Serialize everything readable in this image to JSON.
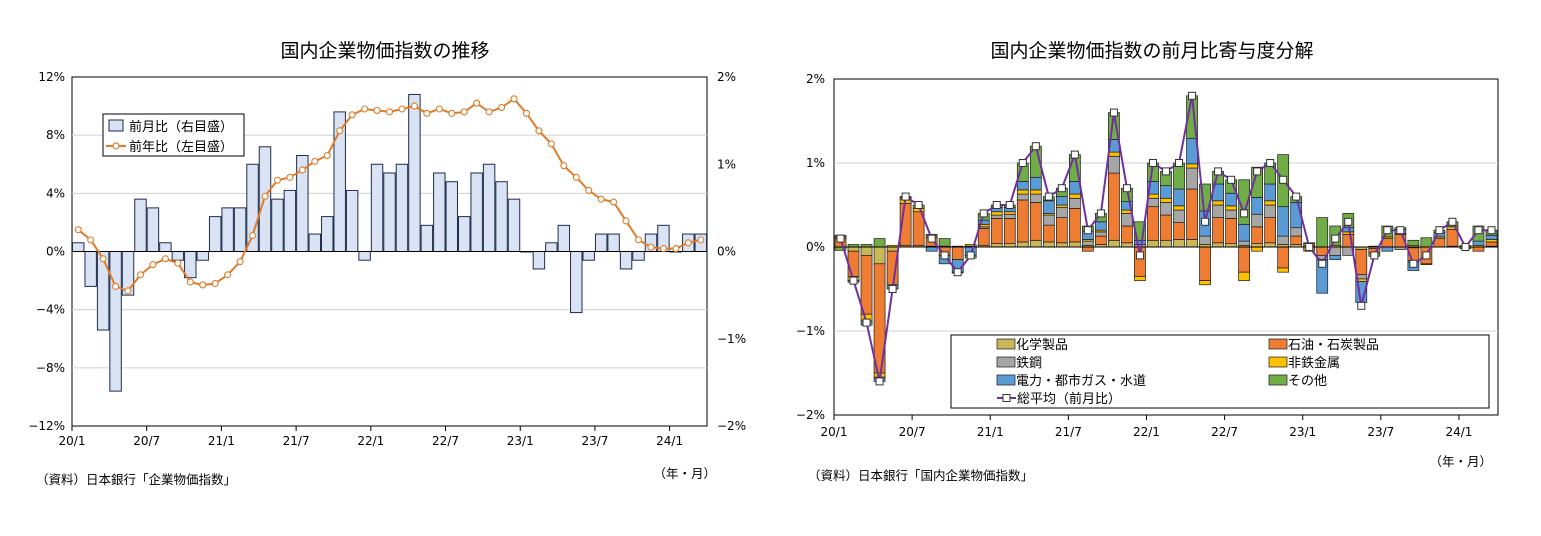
{
  "charts": [
    {
      "title": "国内企業物価指数の推移",
      "source": "（資料）日本銀行「企業物価指数」",
      "unit_label": "（年・月）"
    },
    {
      "title": "国内企業物価指数の前月比寄与度分解",
      "source": "（資料）日本銀行「国内企業物価指数」",
      "unit_label": "（年・月）"
    }
  ],
  "chart_data": [
    {
      "type": "bar",
      "title": "国内企業物価指数の推移",
      "x": [
        "20/1",
        "20/2",
        "20/3",
        "20/4",
        "20/5",
        "20/6",
        "20/7",
        "20/8",
        "20/9",
        "20/10",
        "20/11",
        "20/12",
        "21/1",
        "21/2",
        "21/3",
        "21/4",
        "21/5",
        "21/6",
        "21/7",
        "21/8",
        "21/9",
        "21/10",
        "21/11",
        "21/12",
        "22/1",
        "22/2",
        "22/3",
        "22/4",
        "22/5",
        "22/6",
        "22/7",
        "22/8",
        "22/9",
        "22/10",
        "22/11",
        "22/12",
        "23/1",
        "23/2",
        "23/3",
        "23/4",
        "23/5",
        "23/6",
        "23/7",
        "23/8",
        "23/9",
        "23/10",
        "23/11",
        "23/12",
        "24/1",
        "24/2",
        "24/3"
      ],
      "x_tick_labels": [
        "20/1",
        "20/7",
        "21/1",
        "21/7",
        "22/1",
        "22/7",
        "23/1",
        "23/7",
        "24/1"
      ],
      "y_left": {
        "range": [
          -12,
          12
        ],
        "ticks": [
          "12%",
          "8%",
          "4%",
          "0%",
          "−4%",
          "−8%",
          "−12%"
        ]
      },
      "y_right": {
        "range": [
          -2,
          2
        ],
        "ticks": [
          "2%",
          "1%",
          "0%",
          "−1%",
          "−2%"
        ]
      },
      "series": [
        {
          "name": "前月比（右目盛）",
          "kind": "bar",
          "axis": "right",
          "values": [
            0.1,
            -0.4,
            -0.9,
            -1.6,
            -0.5,
            0.6,
            0.5,
            0.1,
            -0.1,
            -0.3,
            -0.1,
            0.4,
            0.5,
            0.5,
            1.0,
            1.2,
            0.6,
            0.7,
            1.1,
            0.2,
            0.4,
            1.6,
            0.7,
            -0.1,
            1.0,
            0.9,
            1.0,
            1.8,
            0.3,
            0.9,
            0.8,
            0.4,
            0.9,
            1.0,
            0.8,
            0.6,
            0.0,
            -0.2,
            0.1,
            0.3,
            -0.7,
            -0.1,
            0.2,
            0.2,
            -0.2,
            -0.1,
            0.2,
            0.3,
            0.0,
            0.2,
            0.2
          ]
        },
        {
          "name": "前年比（左目盛）",
          "kind": "line",
          "axis": "left",
          "values": [
            1.5,
            0.8,
            -0.5,
            -2.4,
            -2.7,
            -1.6,
            -0.9,
            -0.5,
            -0.8,
            -2.1,
            -2.3,
            -2.2,
            -1.6,
            -0.7,
            1.1,
            3.8,
            4.9,
            5.1,
            5.6,
            6.2,
            6.6,
            8.3,
            9.4,
            9.8,
            9.7,
            9.6,
            9.8,
            10.0,
            9.5,
            9.8,
            9.5,
            9.6,
            10.2,
            9.6,
            9.9,
            10.5,
            9.5,
            8.3,
            7.4,
            5.9,
            5.1,
            4.2,
            3.6,
            3.4,
            2.1,
            0.8,
            0.3,
            0.2,
            0.2,
            0.6,
            0.8
          ]
        }
      ]
    },
    {
      "type": "bar",
      "stacked": true,
      "title": "国内企業物価指数の前月比寄与度分解",
      "x": [
        "20/1",
        "20/2",
        "20/3",
        "20/4",
        "20/5",
        "20/6",
        "20/7",
        "20/8",
        "20/9",
        "20/10",
        "20/11",
        "20/12",
        "21/1",
        "21/2",
        "21/3",
        "21/4",
        "21/5",
        "21/6",
        "21/7",
        "21/8",
        "21/9",
        "21/10",
        "21/11",
        "21/12",
        "22/1",
        "22/2",
        "22/3",
        "22/4",
        "22/5",
        "22/6",
        "22/7",
        "22/8",
        "22/9",
        "22/10",
        "22/11",
        "22/12",
        "23/1",
        "23/2",
        "23/3",
        "23/4",
        "23/5",
        "23/6",
        "23/7",
        "23/8",
        "23/9",
        "23/10",
        "23/11",
        "23/12",
        "24/1",
        "24/2",
        "24/3"
      ],
      "x_tick_labels": [
        "20/1",
        "20/7",
        "21/1",
        "21/7",
        "22/1",
        "22/7",
        "23/1",
        "23/7",
        "24/1"
      ],
      "y": {
        "range": [
          -2,
          2
        ],
        "ticks": [
          "2%",
          "1%",
          "0%",
          "−1%",
          "−2%"
        ]
      },
      "legend_position": "bottom-right",
      "series": [
        {
          "name": "化学製品",
          "values": [
            0.0,
            -0.05,
            -0.1,
            -0.2,
            -0.05,
            0.02,
            0.02,
            0.01,
            0.0,
            0.0,
            0.0,
            0.02,
            0.04,
            0.04,
            0.06,
            0.08,
            0.06,
            0.05,
            0.06,
            0.02,
            0.03,
            0.08,
            0.05,
            0.0,
            0.08,
            0.08,
            0.09,
            0.09,
            0.03,
            0.05,
            0.04,
            0.02,
            0.04,
            0.05,
            0.03,
            0.03,
            0.02,
            0.0,
            0.0,
            0.0,
            -0.03,
            -0.02,
            0.0,
            0.0,
            -0.01,
            0.0,
            0.0,
            0.01,
            0.0,
            0.0,
            0.01
          ]
        },
        {
          "name": "石油・石炭製品",
          "values": [
            0.1,
            -0.3,
            -0.7,
            -1.3,
            -0.4,
            0.5,
            0.4,
            0.1,
            -0.1,
            -0.15,
            0.0,
            0.2,
            0.3,
            0.3,
            0.5,
            0.45,
            0.2,
            0.3,
            0.4,
            -0.05,
            0.1,
            0.8,
            0.2,
            -0.35,
            0.4,
            0.3,
            0.2,
            0.6,
            -0.4,
            0.3,
            0.3,
            -0.3,
            0.2,
            0.3,
            -0.25,
            0.1,
            -0.05,
            -0.1,
            0.0,
            0.15,
            -0.3,
            -0.05,
            0.1,
            0.15,
            -0.15,
            -0.2,
            0.1,
            0.2,
            0.0,
            -0.05,
            0.05
          ]
        },
        {
          "name": "鉄鋼",
          "values": [
            0.0,
            0.0,
            0.0,
            0.0,
            0.0,
            0.0,
            0.0,
            0.0,
            0.0,
            0.0,
            0.01,
            0.02,
            0.04,
            0.05,
            0.07,
            0.1,
            0.12,
            0.12,
            0.12,
            0.05,
            0.05,
            0.2,
            0.15,
            0.03,
            0.1,
            0.15,
            0.15,
            0.25,
            0.1,
            0.15,
            0.1,
            0.05,
            0.15,
            0.15,
            0.1,
            0.1,
            0.0,
            -0.05,
            -0.1,
            -0.1,
            -0.05,
            0.0,
            0.0,
            -0.03,
            -0.02,
            0.0,
            0.0,
            0.0,
            0.0,
            0.0,
            0.0
          ]
        },
        {
          "name": "非鉄金属",
          "values": [
            0.02,
            -0.05,
            -0.08,
            -0.05,
            0.02,
            0.05,
            0.04,
            0.02,
            0.01,
            0.01,
            0.02,
            0.03,
            0.04,
            0.03,
            0.05,
            0.05,
            0.02,
            0.03,
            0.05,
            0.02,
            0.02,
            0.05,
            0.04,
            -0.05,
            0.05,
            0.05,
            0.05,
            0.05,
            -0.05,
            0.05,
            0.05,
            -0.1,
            -0.05,
            0.05,
            -0.05,
            0.0,
            0.02,
            0.0,
            0.02,
            0.03,
            -0.03,
            0.01,
            0.02,
            0.01,
            0.02,
            -0.01,
            0.02,
            0.03,
            0.02,
            0.02,
            0.03
          ]
        },
        {
          "name": "電力・都市ガス・水道",
          "values": [
            0.02,
            -0.02,
            -0.05,
            -0.05,
            -0.05,
            0.02,
            0.0,
            -0.05,
            -0.1,
            -0.15,
            -0.1,
            0.05,
            0.05,
            0.05,
            0.1,
            0.15,
            0.15,
            0.1,
            0.15,
            0.1,
            0.1,
            0.15,
            0.1,
            0.05,
            0.15,
            0.15,
            0.2,
            0.3,
            0.3,
            0.2,
            0.15,
            0.2,
            0.2,
            0.2,
            0.35,
            0.3,
            0.0,
            -0.4,
            -0.05,
            0.05,
            -0.25,
            0.0,
            -0.05,
            0.05,
            -0.1,
            0.0,
            0.05,
            0.0,
            0.0,
            0.05,
            0.05
          ]
        },
        {
          "name": "その他",
          "values": [
            -0.04,
            0.03,
            0.03,
            0.1,
            0.0,
            0.01,
            0.04,
            0.02,
            0.09,
            -0.01,
            -0.03,
            0.08,
            0.03,
            0.03,
            0.22,
            0.37,
            0.05,
            0.1,
            0.32,
            0.06,
            0.1,
            0.32,
            0.16,
            0.22,
            0.22,
            0.17,
            0.31,
            0.51,
            0.32,
            0.15,
            0.16,
            0.53,
            0.36,
            0.25,
            0.62,
            0.07,
            0.01,
            0.35,
            0.23,
            0.17,
            0.0,
            -0.04,
            0.13,
            0.02,
            0.06,
            0.11,
            0.03,
            0.06,
            -0.02,
            0.18,
            0.06
          ]
        },
        {
          "name": "総平均（前月比）",
          "kind": "line",
          "values": [
            0.1,
            -0.4,
            -0.9,
            -1.6,
            -0.5,
            0.6,
            0.5,
            0.1,
            -0.1,
            -0.3,
            -0.1,
            0.4,
            0.5,
            0.5,
            1.0,
            1.2,
            0.6,
            0.7,
            1.1,
            0.2,
            0.4,
            1.6,
            0.7,
            -0.1,
            1.0,
            0.9,
            1.0,
            1.8,
            0.3,
            0.9,
            0.8,
            0.4,
            0.9,
            1.0,
            0.8,
            0.6,
            0.0,
            -0.2,
            0.1,
            0.3,
            -0.7,
            -0.1,
            0.2,
            0.2,
            -0.2,
            -0.1,
            0.2,
            0.3,
            0.0,
            0.2,
            0.2
          ]
        }
      ]
    }
  ],
  "colors": {
    "bar_fill": "#d9e3f3",
    "bar_stroke": "#1f2d4d",
    "line_orange": "#e07b2a",
    "chemical": "#c9b75a",
    "oil": "#ee7d33",
    "steel": "#a6a6a6",
    "nonferrous": "#ffc000",
    "power": "#5b9bd5",
    "other": "#70ad47",
    "average": "#7030a0"
  }
}
